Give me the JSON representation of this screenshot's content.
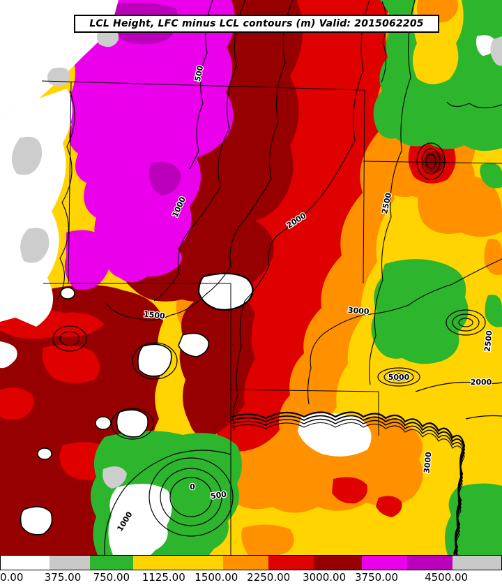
{
  "title": {
    "text": "LCL Height, LFC minus LCL contours (m) Valid: 2015062205"
  },
  "colorbar": {
    "tick_labels": [
      "0.00",
      "375.00",
      "750.00",
      "1125.00",
      "1500.00",
      "2250.00",
      "3000.00",
      "3750.00",
      "4500.00"
    ],
    "tick_positions_pct": [
      0,
      12.5,
      22.2,
      32.6,
      43.1,
      53.5,
      64.6,
      75.0,
      88.9
    ],
    "segments": [
      {
        "color": "#ffffff",
        "width_pct": 9.7
      },
      {
        "color": "#c9c9c9",
        "width_pct": 8.1
      },
      {
        "color": "#2eb52e",
        "width_pct": 8.6
      },
      {
        "color": "#ffd400",
        "width_pct": 18.1
      },
      {
        "color": "#ff9000",
        "width_pct": 9.0
      },
      {
        "color": "#df0000",
        "width_pct": 9.0
      },
      {
        "color": "#970000",
        "width_pct": 9.7
      },
      {
        "color": "#ea00ea",
        "width_pct": 9.0
      },
      {
        "color": "#bb00bb",
        "width_pct": 9.0
      },
      {
        "color": "#c9c9c9",
        "width_pct": 9.8
      }
    ]
  },
  "map": {
    "fill_colors": {
      "white": "#ffffff",
      "gray": "#cdcdcd",
      "green": "#2eb52e",
      "yellow": "#ffd400",
      "orange": "#ff9000",
      "red": "#df0000",
      "dark_red": "#970000",
      "magenta": "#ea00ea",
      "purple": "#bb00bb"
    },
    "contour_labels": [
      {
        "text": "500"
      },
      {
        "text": "1000"
      },
      {
        "text": "1500"
      },
      {
        "text": "2000"
      },
      {
        "text": "2500"
      },
      {
        "text": "3000"
      },
      {
        "text": "2500"
      },
      {
        "text": "2000"
      },
      {
        "text": "5000"
      },
      {
        "text": "3000"
      },
      {
        "text": "0"
      },
      {
        "text": "500"
      },
      {
        "text": "1000"
      }
    ]
  },
  "chart_data": {
    "type": "heatmap",
    "title": "LCL Height, LFC minus LCL contours (m) Valid: 2015062205",
    "shaded_field": "LCL Height (m)",
    "contour_field": "LFC minus LCL (m)",
    "colorbar_ticks": [
      0,
      375,
      750,
      1125,
      1500,
      2250,
      3000,
      3750,
      4500
    ],
    "colorbar_colors": [
      "#ffffff",
      "#c9c9c9",
      "#2eb52e",
      "#ffd400",
      "#ff9000",
      "#df0000",
      "#970000",
      "#ea00ea",
      "#bb00bb",
      "#c9c9c9"
    ],
    "contour_levels_visible": [
      0,
      500,
      1000,
      1500,
      2000,
      2500,
      3000,
      5000
    ],
    "legend_position": "bottom",
    "units": "m"
  }
}
